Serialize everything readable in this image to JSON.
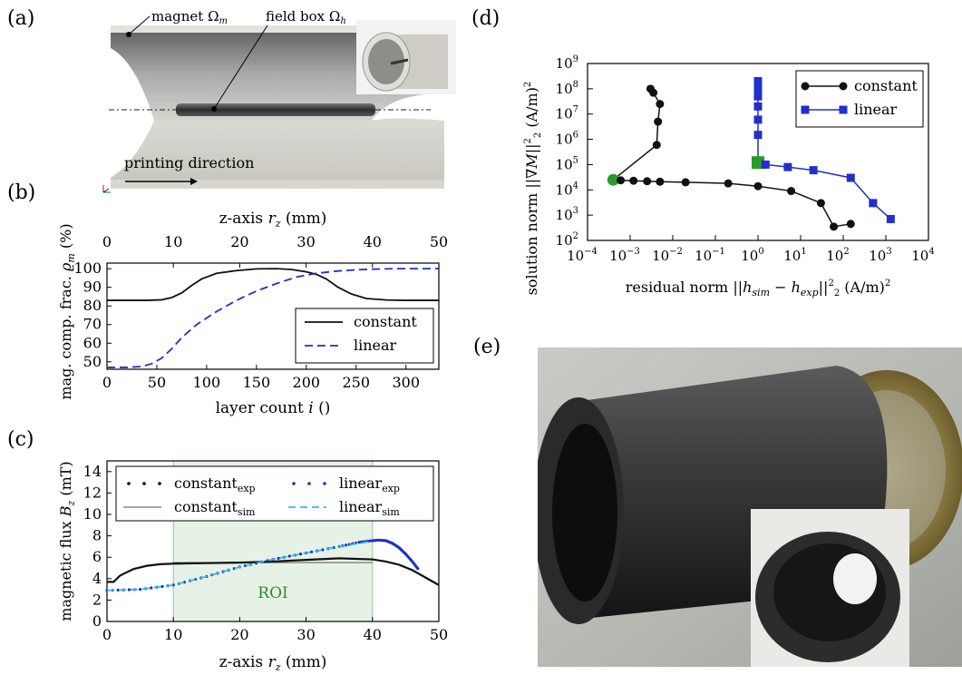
{
  "panels": {
    "a": "(a)",
    "b": "(b)",
    "c": "(c)",
    "d": "(d)",
    "e": "(e)"
  },
  "panel_a": {
    "magnet_label": "magnet Ω",
    "magnet_sub": "m",
    "fieldbox_label": "field box Ω",
    "fieldbox_sub": "h",
    "printing_direction": "printing direction"
  },
  "colors": {
    "constant": "#111111",
    "linear": "#2030c8",
    "roi": "#e6f2e6",
    "sim_gray": "#888888",
    "sim_cyan": "#30c0d8",
    "marker_green": "#2a9a2a"
  },
  "chart_data": [
    {
      "id": "b",
      "type": "line",
      "top_xlabel": "z-axis r_z (mm)",
      "top_xlabel_prefix": "z-axis ",
      "top_xlabel_var": "r",
      "top_xlabel_sub": "z",
      "top_xlabel_unit": " (mm)",
      "top_xticks": [
        "0",
        "10",
        "20",
        "30",
        "40",
        "50"
      ],
      "xlabel": "layer count i ()",
      "xlabel_prefix": "layer count ",
      "xlabel_var": "i",
      "xlabel_unit": " ()",
      "ylabel": "mag. comp. frac. ϱ_m (%)",
      "ylabel_prefix": "mag. comp. frac. ",
      "ylabel_var": "ϱ",
      "ylabel_sub": "m",
      "ylabel_unit": " (%)",
      "xlim": [
        0,
        333
      ],
      "ylim": [
        46,
        103
      ],
      "xticks": [
        "0",
        "50",
        "100",
        "150",
        "200",
        "250",
        "300"
      ],
      "yticks": [
        "50",
        "60",
        "70",
        "80",
        "90",
        "100"
      ],
      "legend": "lower-right",
      "series": [
        {
          "name": "constant",
          "style": "solid",
          "x": [
            0,
            20,
            40,
            55,
            65,
            75,
            85,
            95,
            110,
            130,
            150,
            170,
            185,
            200,
            210,
            220,
            232,
            245,
            260,
            280,
            300,
            333
          ],
          "y": [
            83,
            83,
            83,
            83.3,
            84.5,
            87,
            91,
            94.5,
            97.5,
            99,
            99.9,
            100,
            99.6,
            98.3,
            97,
            94.5,
            90,
            86.5,
            84,
            83.2,
            83,
            83
          ]
        },
        {
          "name": "linear",
          "style": "dashed",
          "x": [
            0,
            20,
            35,
            45,
            55,
            65,
            75,
            90,
            110,
            130,
            150,
            170,
            190,
            210,
            230,
            250,
            270,
            290,
            310,
            333
          ],
          "y": [
            47,
            47,
            47.5,
            49,
            52,
            57,
            63,
            70,
            77,
            83,
            88,
            92,
            95.5,
            97.5,
            98.7,
            99.4,
            99.8,
            100,
            100,
            100
          ]
        }
      ]
    },
    {
      "id": "c",
      "type": "line",
      "xlabel": "z-axis r_z (mm)",
      "xlabel_prefix": "z-axis ",
      "xlabel_var": "r",
      "xlabel_sub": "z",
      "xlabel_unit": " (mm)",
      "ylabel": "magnetic flux B_z (mT)",
      "ylabel_prefix": "magnetic flux ",
      "ylabel_var": "B",
      "ylabel_sub": "z",
      "ylabel_unit": " (mT)",
      "xlim": [
        0,
        50
      ],
      "ylim": [
        0,
        15
      ],
      "xticks": [
        "0",
        "10",
        "20",
        "30",
        "40",
        "50"
      ],
      "yticks": [
        "0",
        "2",
        "4",
        "6",
        "8",
        "10",
        "12",
        "14"
      ],
      "roi": {
        "x0": 10,
        "x1": 40,
        "label": "ROI"
      },
      "legend": "top",
      "legend_entries": [
        {
          "base": "constant",
          "sub": "exp"
        },
        {
          "base": "linear",
          "sub": "exp"
        },
        {
          "base": "constant",
          "sub": "sim"
        },
        {
          "base": "linear",
          "sub": "sim"
        }
      ],
      "series": [
        {
          "name": "constant_exp",
          "style": "dots-black",
          "x": [
            0,
            1,
            2,
            4,
            6,
            8,
            10,
            15,
            20,
            25,
            30,
            35,
            40,
            42,
            44,
            46,
            48,
            50
          ],
          "y": [
            3.7,
            3.7,
            4.3,
            4.9,
            5.2,
            5.35,
            5.4,
            5.45,
            5.5,
            5.6,
            5.75,
            5.9,
            5.8,
            5.6,
            5.3,
            4.8,
            4.1,
            3.4
          ]
        },
        {
          "name": "linear_exp",
          "style": "dots-blue",
          "x": [
            0,
            5,
            10,
            15,
            20,
            25,
            30,
            35,
            38,
            40,
            41,
            42,
            43,
            44,
            45,
            46,
            47
          ],
          "y": [
            2.9,
            3.0,
            3.4,
            4.2,
            5.1,
            5.8,
            6.4,
            7.0,
            7.4,
            7.55,
            7.6,
            7.55,
            7.3,
            6.9,
            6.3,
            5.6,
            4.8
          ]
        },
        {
          "name": "constant_sim",
          "style": "line-gray",
          "x": [
            10,
            20,
            30,
            40
          ],
          "y": [
            5.5,
            5.5,
            5.5,
            5.5
          ]
        },
        {
          "name": "linear_sim",
          "style": "dashed-cyan",
          "x": [
            0,
            5,
            10,
            15,
            20,
            25,
            30,
            35,
            40
          ],
          "y": [
            2.9,
            3.0,
            3.4,
            4.2,
            5.1,
            5.8,
            6.4,
            7.0,
            7.5
          ]
        }
      ]
    },
    {
      "id": "d",
      "type": "line",
      "xscale": "log",
      "yscale": "log",
      "xlabel": "residual norm ||h_sim − h_exp||²₂ (A/m)²",
      "ylabel": "solution norm ||∇M||²₂ (A/m)²",
      "xlabel_prefix": "residual norm ",
      "ylabel_prefix": "solution norm ",
      "unit_text": "(A/m)",
      "xlim_exp": [
        -4,
        4
      ],
      "ylim_exp": [
        2,
        9
      ],
      "xticks": [
        "10",
        "10",
        "10",
        "10",
        "10",
        "10",
        "10",
        "10",
        "10"
      ],
      "xtick_exps": [
        "−4",
        "−3",
        "−2",
        "−1",
        "0",
        "1",
        "2",
        "3",
        "4"
      ],
      "yticks": [
        "10",
        "10",
        "10",
        "10",
        "10",
        "10",
        "10",
        "10"
      ],
      "ytick_exps": [
        "2",
        "3",
        "4",
        "5",
        "6",
        "7",
        "8",
        "9"
      ],
      "legend": "top-right",
      "series": [
        {
          "name": "constant",
          "marker": "circle",
          "x": [
            0.003,
            0.0035,
            0.005,
            0.0045,
            0.0042,
            0.0004,
            0.0006,
            0.0012,
            0.0025,
            0.005,
            0.02,
            0.2,
            1,
            6,
            30,
            60,
            150
          ],
          "y": [
            100000000,
            70000000,
            25000000,
            5000000,
            600000,
            25000,
            24000,
            23000,
            22000,
            21000,
            20000,
            18000,
            14000,
            9000,
            3000,
            350,
            450
          ],
          "highlight_index": 5
        },
        {
          "name": "linear",
          "marker": "square",
          "x": [
            1,
            1,
            1,
            1,
            1,
            1,
            1,
            1.5,
            5,
            20,
            150,
            500,
            1300
          ],
          "y": [
            200000000,
            100000000,
            50000000,
            20000000,
            6000000,
            1500000,
            120000,
            100000,
            80000,
            60000,
            30000,
            3000,
            700
          ],
          "highlight_index": 6
        }
      ]
    }
  ]
}
